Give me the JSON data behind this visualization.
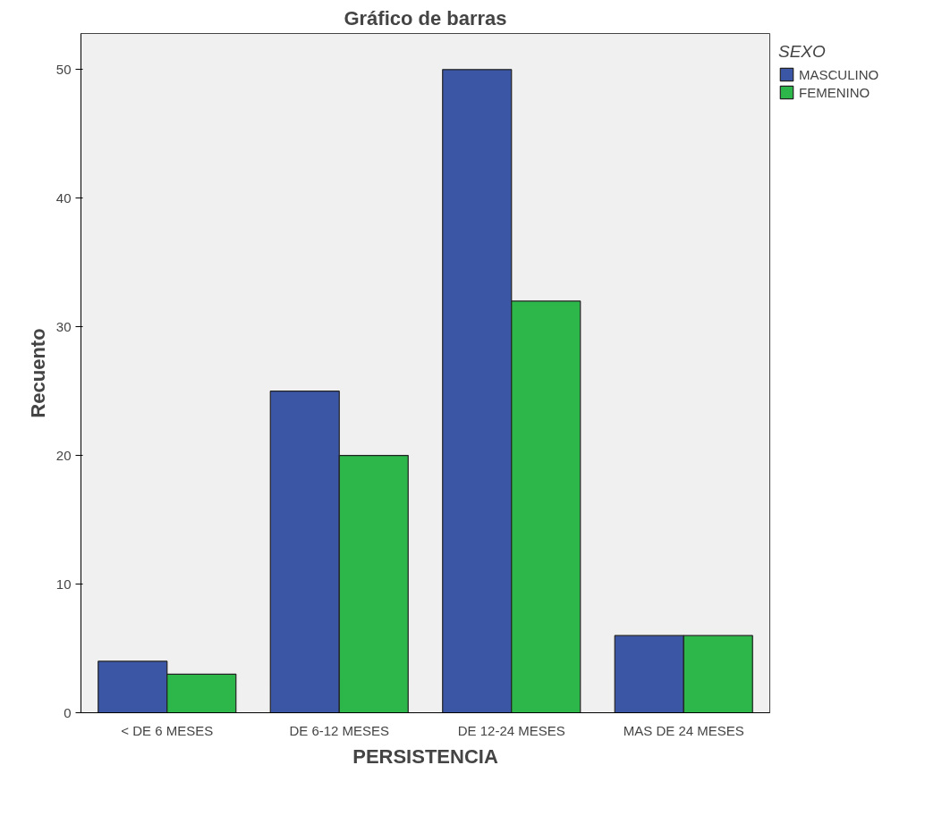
{
  "chart_data": {
    "type": "bar",
    "title": "Gráfico de barras",
    "xlabel": "PERSISTENCIA",
    "ylabel": "Recuento",
    "legend_title": "SEXO",
    "categories": [
      "< DE 6 MESES",
      "DE 6-12 MESES",
      "DE 12-24 MESES",
      "MAS DE 24 MESES"
    ],
    "series": [
      {
        "name": "MASCULINO",
        "color": "#3c56a6",
        "values": [
          4,
          25,
          50,
          6
        ]
      },
      {
        "name": "FEMENINO",
        "color": "#2db74a",
        "values": [
          3,
          20,
          32,
          6
        ]
      }
    ],
    "ylim": [
      0,
      52.8
    ],
    "yticks": [
      0,
      10,
      20,
      30,
      40,
      50
    ],
    "grid": false,
    "legend": "right"
  }
}
